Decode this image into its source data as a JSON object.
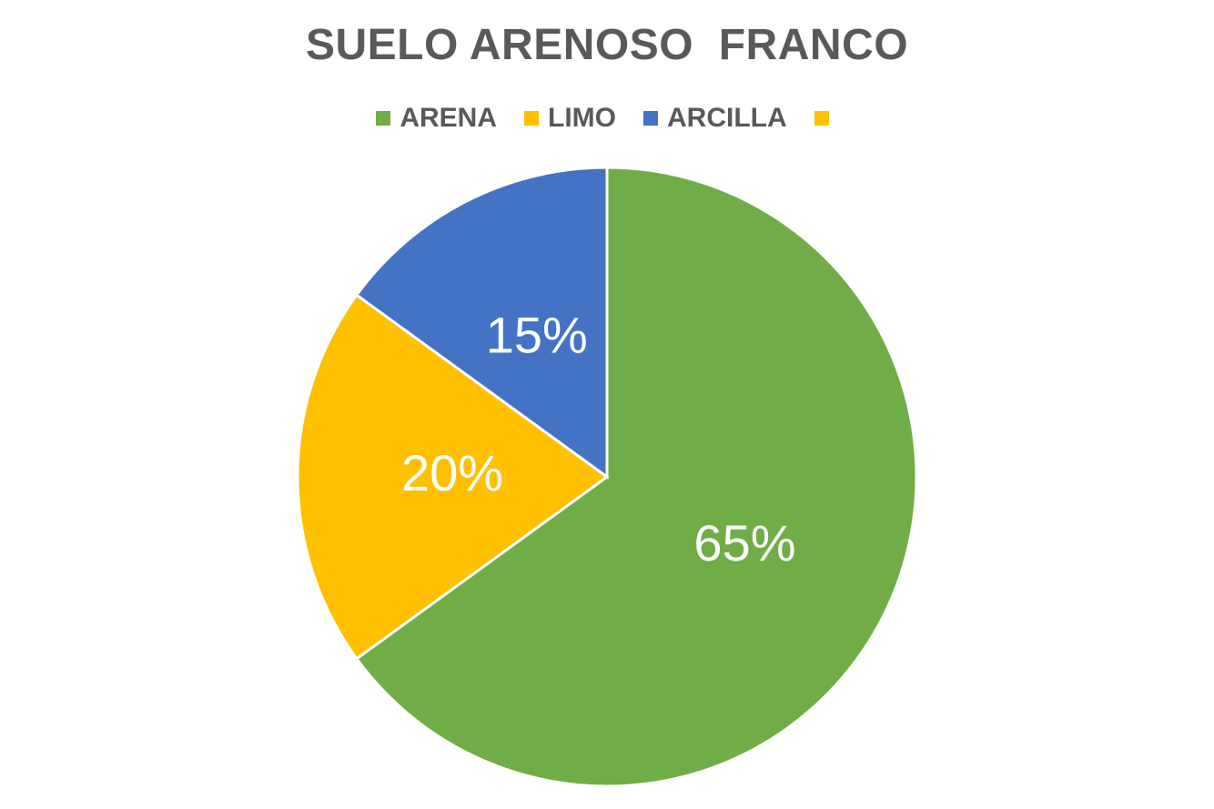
{
  "chart_data": {
    "type": "pie",
    "title": "SUELO ARENOSO  FRANCO",
    "legend_position": "top",
    "categories": [
      "ARENA",
      "LIMO",
      "ARCILLA",
      ""
    ],
    "values": [
      65,
      20,
      15,
      0
    ],
    "labels": [
      "65%",
      "20%",
      "15%",
      ""
    ],
    "colors": [
      "#70AD47",
      "#FFC000",
      "#4472C4",
      "#FFC000"
    ]
  }
}
